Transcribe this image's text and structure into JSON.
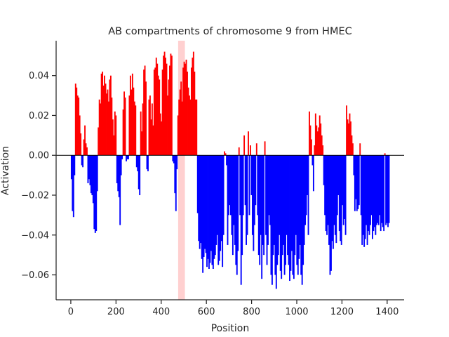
{
  "chart_data": {
    "type": "bar",
    "title": "AB compartments of chromosome 9 from HMEC",
    "xlabel": "Position",
    "ylabel": "Activation",
    "xlim": [
      -65,
      1475
    ],
    "ylim": [
      -0.0725,
      0.0575
    ],
    "xticks": [
      0,
      200,
      400,
      600,
      800,
      1000,
      1200,
      1400
    ],
    "xtick_labels": [
      "0",
      "200",
      "400",
      "600",
      "800",
      "1000",
      "1200",
      "1400"
    ],
    "yticks": [
      -0.06,
      -0.04,
      -0.02,
      0.0,
      0.02,
      0.04
    ],
    "ytick_labels": [
      "−0.06",
      "−0.04",
      "−0.02",
      "0.00",
      "0.02",
      "0.04"
    ],
    "grid": false,
    "positive_color": "#ff0000",
    "negative_color": "#0000ff",
    "highlight_region": {
      "x": [
        475,
        505
      ],
      "color": "#ffd0d0"
    },
    "x_start": 0,
    "values": [
      -0.012,
      -0.028,
      -0.031,
      -0.01,
      0.036,
      0.034,
      0.03,
      0.029,
      0.02,
      0.011,
      -0.005,
      -0.006,
      0.008,
      0.015,
      0.006,
      0.004,
      -0.014,
      -0.012,
      -0.015,
      -0.019,
      -0.02,
      -0.024,
      -0.037,
      -0.039,
      -0.038,
      -0.018,
      0.014,
      0.028,
      0.026,
      0.041,
      0.042,
      0.035,
      0.04,
      0.036,
      0.031,
      0.033,
      0.027,
      0.038,
      0.04,
      0.029,
      0.018,
      0.01,
      0.022,
      0.02,
      -0.014,
      -0.018,
      -0.021,
      -0.035,
      -0.01,
      -0.002,
      0.023,
      0.032,
      0.029,
      -0.003,
      -0.002,
      -0.002,
      0.03,
      0.04,
      0.033,
      0.041,
      0.034,
      0.027,
      0.025,
      -0.006,
      -0.008,
      -0.017,
      -0.02,
      0.022,
      0.012,
      0.026,
      0.043,
      0.045,
      0.037,
      -0.007,
      -0.008,
      0.028,
      0.03,
      0.018,
      0.026,
      0.015,
      0.043,
      0.044,
      0.049,
      0.046,
      0.04,
      0.038,
      0.021,
      0.017,
      0.043,
      0.05,
      0.052,
      0.049,
      0.046,
      0.03,
      0.038,
      0.045,
      0.051,
      0.05,
      -0.003,
      -0.004,
      -0.019,
      -0.028,
      -0.007,
      0.02,
      0.028,
      0.033,
      0.037,
      0.027,
      0.044,
      0.047,
      0.046,
      0.048,
      0.042,
      0.034,
      0.03,
      0.028,
      0.044,
      0.049,
      0.052,
      0.042,
      0.028,
      0.028,
      -0.029,
      -0.043,
      -0.047,
      -0.044,
      -0.052,
      -0.059,
      -0.051,
      -0.047,
      -0.049,
      -0.056,
      -0.052,
      -0.057,
      -0.054,
      -0.048,
      -0.055,
      -0.057,
      -0.052,
      -0.05,
      -0.045,
      -0.04,
      -0.055,
      -0.053,
      -0.048,
      -0.043,
      -0.056,
      -0.04,
      0.002,
      0.001,
      -0.005,
      -0.045,
      -0.03,
      -0.025,
      -0.03,
      -0.04,
      -0.05,
      -0.035,
      -0.045,
      -0.055,
      -0.06,
      -0.048,
      0.004,
      -0.03,
      -0.065,
      -0.05,
      -0.03,
      0.01,
      -0.025,
      -0.045,
      -0.04,
      0.012,
      -0.03,
      0.005,
      -0.02,
      -0.04,
      -0.048,
      -0.035,
      -0.025,
      0.006,
      -0.03,
      -0.05,
      -0.055,
      -0.04,
      -0.062,
      -0.045,
      -0.05,
      0.007,
      -0.04,
      -0.055,
      -0.045,
      -0.03,
      -0.035,
      -0.06,
      -0.065,
      -0.05,
      -0.045,
      -0.06,
      -0.067,
      -0.055,
      -0.05,
      -0.04,
      -0.058,
      -0.062,
      -0.05,
      -0.045,
      -0.06,
      -0.055,
      -0.04,
      -0.05,
      -0.055,
      -0.063,
      -0.058,
      -0.048,
      -0.06,
      -0.062,
      -0.05,
      -0.04,
      -0.055,
      -0.06,
      -0.052,
      -0.045,
      -0.06,
      -0.065,
      -0.055,
      -0.045,
      -0.035,
      -0.03,
      -0.02,
      -0.04,
      0.022,
      0.015,
      0.008,
      -0.005,
      -0.018,
      0.005,
      0.021,
      0.015,
      0.012,
      0.014,
      0.02,
      0.016,
      0.01,
      0.005,
      -0.015,
      -0.03,
      -0.038,
      -0.04,
      -0.035,
      -0.045,
      -0.06,
      -0.058,
      -0.043,
      -0.047,
      -0.035,
      -0.04,
      -0.044,
      -0.03,
      -0.02,
      -0.038,
      -0.043,
      -0.045,
      -0.025,
      -0.035,
      -0.032,
      -0.04,
      0.025,
      0.018,
      0.016,
      0.021,
      0.017,
      0.01,
      0.006,
      -0.01,
      -0.028,
      -0.022,
      -0.028,
      -0.027,
      -0.025,
      0.006,
      -0.03,
      -0.045,
      -0.04,
      -0.046,
      -0.042,
      -0.035,
      -0.045,
      -0.038,
      -0.04,
      -0.035,
      -0.03,
      -0.042,
      -0.038,
      -0.036,
      -0.04,
      -0.035,
      -0.034,
      -0.035,
      -0.03,
      -0.038,
      -0.034,
      -0.036,
      -0.038,
      0.001,
      -0.035,
      -0.034,
      -0.036,
      -0.034
    ]
  }
}
